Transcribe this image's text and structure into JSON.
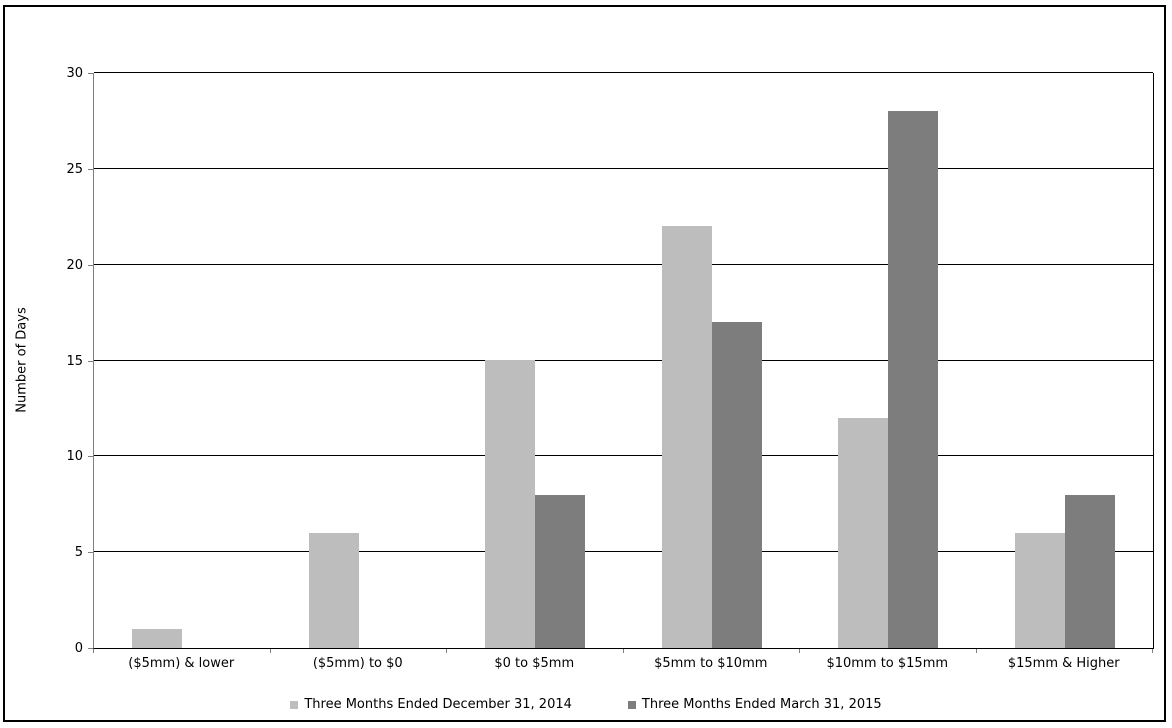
{
  "chart_data": {
    "type": "bar",
    "title": "",
    "ylabel": "Number of Days",
    "xlabel": "",
    "categories": [
      "($5mm) & lower",
      "($5mm) to $0",
      "$0 to $5mm",
      "$5mm to $10mm",
      "$10mm to $15mm",
      "$15mm & Higher"
    ],
    "series": [
      {
        "name": "Three Months Ended December 31, 2014",
        "color": "#bdbdbd",
        "values": [
          1,
          6,
          15,
          22,
          12,
          6
        ]
      },
      {
        "name": "Three Months Ended March 31, 2015",
        "color": "#7d7d7d",
        "values": [
          0,
          0,
          8,
          17,
          28,
          8
        ]
      }
    ],
    "ylim": [
      0,
      30
    ],
    "yticks": [
      0,
      5,
      10,
      15,
      20,
      25,
      30
    ],
    "grid": true,
    "legend_position": "bottom"
  },
  "colors": {
    "background": "#ffffff",
    "frame_border": "#000000",
    "gridline": "#000000",
    "axis_tick": "#7f7f7f",
    "text": "#000000"
  }
}
